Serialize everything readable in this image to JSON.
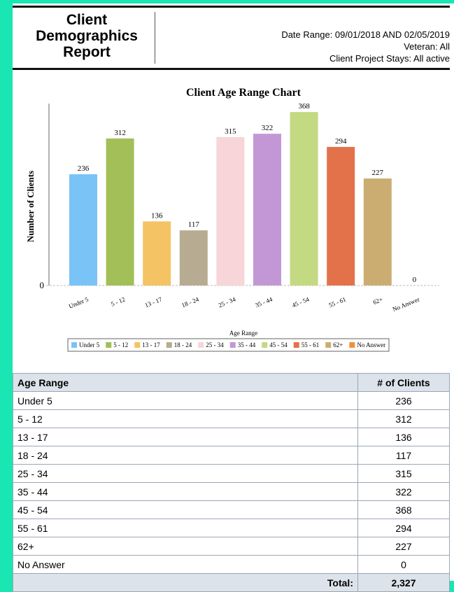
{
  "header": {
    "title": "Client Demographics Report",
    "lines": [
      "Date Range: 09/01/2018 AND 02/05/2019",
      "Veteran: All",
      "Client Project Stays: All active"
    ]
  },
  "chart_data": {
    "type": "bar",
    "title": "Client Age Range Chart",
    "x_label": "Age Range",
    "y_label": "Number of Clients",
    "categories": [
      "Under 5",
      "5 - 12",
      "13 - 17",
      "18 - 24",
      "25 - 34",
      "35 - 44",
      "45 - 54",
      "55 - 61",
      "62+",
      "No Answer"
    ],
    "values": [
      236,
      312,
      136,
      117,
      315,
      322,
      368,
      294,
      227,
      0
    ],
    "colors": [
      "#79c3f7",
      "#a3bf57",
      "#f3c364",
      "#b7ab91",
      "#f7d5d8",
      "#c397d5",
      "#c3d982",
      "#e3714a",
      "#cbad72",
      "#f0913c"
    ],
    "ylim": [
      0,
      386
    ],
    "yticks": [
      0
    ]
  },
  "table": {
    "header": [
      "Age Range",
      "# of Clients"
    ],
    "rows": [
      [
        "Under 5",
        "236"
      ],
      [
        "5 - 12",
        "312"
      ],
      [
        "13 - 17",
        "136"
      ],
      [
        "18 - 24",
        "117"
      ],
      [
        "25 - 34",
        "315"
      ],
      [
        "35 - 44",
        "322"
      ],
      [
        "45 - 54",
        "368"
      ],
      [
        "55 - 61",
        "294"
      ],
      [
        "62+",
        "227"
      ],
      [
        "No Answer",
        "0"
      ]
    ],
    "total_label": "Total:",
    "total": "2,327"
  }
}
